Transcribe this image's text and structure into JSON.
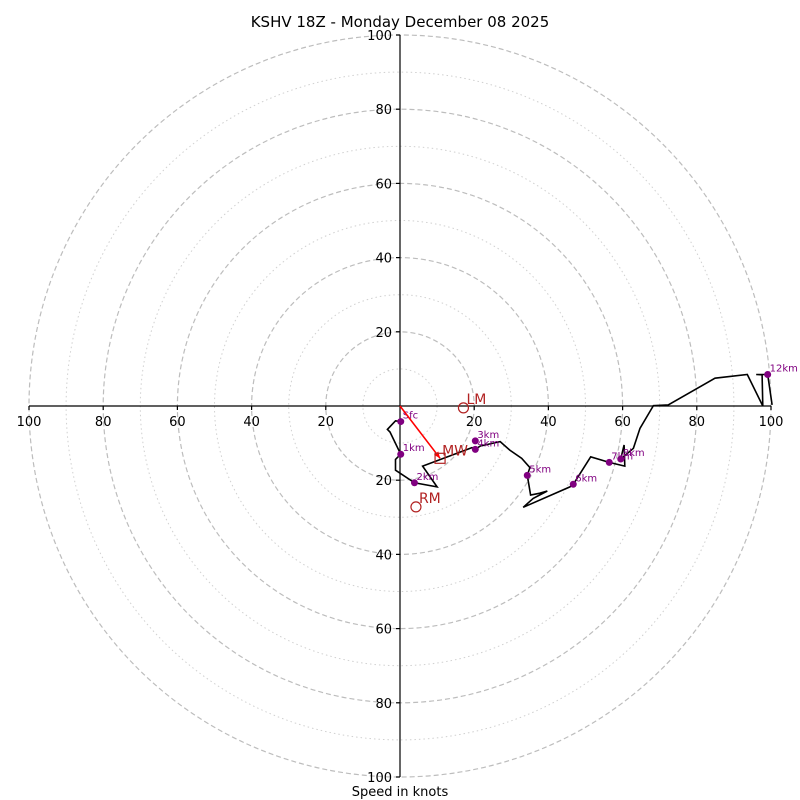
{
  "chart_data": {
    "type": "line",
    "subtype": "hodograph",
    "title": "KSHV 18Z - Monday December 08 2025",
    "xlabel": "Speed in knots",
    "ylabel": "",
    "xlim": [
      -100,
      100
    ],
    "ylim": [
      -100,
      100
    ],
    "units": "knots",
    "rings": {
      "major": [
        20,
        40,
        60,
        80,
        100
      ],
      "minor": [
        10,
        30,
        50,
        70,
        90
      ]
    },
    "x_tick_labels": [
      "100",
      "80",
      "60",
      "40",
      "20",
      "20",
      "40",
      "60",
      "80",
      "100"
    ],
    "x_tick_values": [
      -100,
      -80,
      -60,
      -40,
      -20,
      20,
      40,
      60,
      80,
      100
    ],
    "y_tick_labels": [
      "100",
      "80",
      "60",
      "40",
      "20",
      "20",
      "40",
      "60",
      "80",
      "100"
    ],
    "y_tick_values": [
      100,
      80,
      60,
      40,
      20,
      -20,
      -40,
      -60,
      -80,
      -100
    ],
    "hodograph": {
      "color": "#000000",
      "u": [
        0.2,
        -1.2,
        -3.4,
        -2.7,
        0.2,
        -1.2,
        -1.2,
        3.9,
        10.0,
        6.1,
        19.4,
        20.3,
        21.6,
        24.7,
        27.0,
        29.6,
        32.8,
        35.0,
        34.3,
        35.2,
        37.7,
        39.7,
        35.9,
        33.2,
        45.8,
        46.7,
        51.4,
        56.4,
        60.6,
        60.4,
        59.5,
        62.9,
        64.7,
        68.3,
        72.3,
        84.9,
        93.6,
        97.8,
        97.6,
        96.0,
        99.1,
        100.3
      ],
      "v": [
        -4.2,
        -4.0,
        -6.3,
        -7.0,
        -13.0,
        -14.4,
        -17.3,
        -20.7,
        -21.8,
        -16.2,
        -11.2,
        -11.7,
        -10.8,
        -10.1,
        -9.6,
        -11.9,
        -14.1,
        -16.6,
        -18.7,
        -24.0,
        -23.5,
        -22.9,
        -24.9,
        -27.3,
        -21.8,
        -21.1,
        -13.7,
        -15.2,
        -16.2,
        -10.5,
        -14.3,
        -11.4,
        -6.0,
        0.1,
        0.3,
        7.5,
        8.5,
        0.0,
        8.4,
        8.5,
        8.5,
        0.3
      ]
    },
    "height_markers": {
      "color": "#800080",
      "points": [
        {
          "label": "Sfc",
          "u": 0.2,
          "v": -4.2
        },
        {
          "label": "1km",
          "u": 0.2,
          "v": -13.0
        },
        {
          "label": "2km",
          "u": 3.9,
          "v": -20.7
        },
        {
          "label": "3km",
          "u": 20.3,
          "v": -9.4
        },
        {
          "label": "4km",
          "u": 20.3,
          "v": -11.7
        },
        {
          "label": "5km",
          "u": 34.3,
          "v": -18.7
        },
        {
          "label": "6km",
          "u": 46.7,
          "v": -21.1
        },
        {
          "label": "7km",
          "u": 56.4,
          "v": -15.2
        },
        {
          "label": "8km",
          "u": 59.5,
          "v": -14.3
        },
        {
          "label": "12km",
          "u": 99.1,
          "v": 8.5
        }
      ]
    },
    "storm_motion": {
      "color": "#b22222",
      "mean_wind": {
        "label": "MW",
        "u": 10.8,
        "v": -14.1
      },
      "left_mover": {
        "label": "LM",
        "u": 17.1,
        "v": -0.5
      },
      "right_mover": {
        "label": "RM",
        "u": 4.3,
        "v": -27.2
      },
      "shear_vector": {
        "color": "#ff0000",
        "from_u": 0,
        "from_v": 0,
        "to_u": 10.8,
        "to_v": -14.1
      }
    }
  }
}
